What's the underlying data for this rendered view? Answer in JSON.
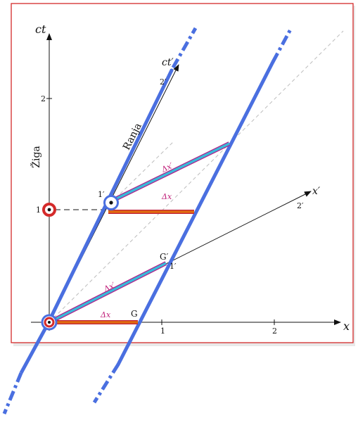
{
  "labels": {
    "ct": "ct",
    "x": "x",
    "ct_prime": "ct′",
    "x_prime": "x′",
    "ziga": "Žiga",
    "ranja": "Ranja",
    "tick_x_1": "1",
    "tick_x_2": "2",
    "tick_ct_1": "1",
    "tick_ct_2": "2",
    "tick_ctp_1": "1′",
    "tick_ctp_2": "2′",
    "tick_xp_1": "1′",
    "tick_xp_2": "2′",
    "event_g": "G",
    "event_g_prime": "G′",
    "delta_x": "Δx",
    "delta_x_prime": "Δx′"
  },
  "colors": {
    "frame": "#d42a2a",
    "worldline": "#4a6fe0",
    "proper_length": "#e06a10",
    "contracted_length": "#3ab8d8",
    "delta_label": "#c0207a",
    "axis": "#111111",
    "lightcone": "#bdbdbd",
    "marker_red": "#d42a2a"
  }
}
